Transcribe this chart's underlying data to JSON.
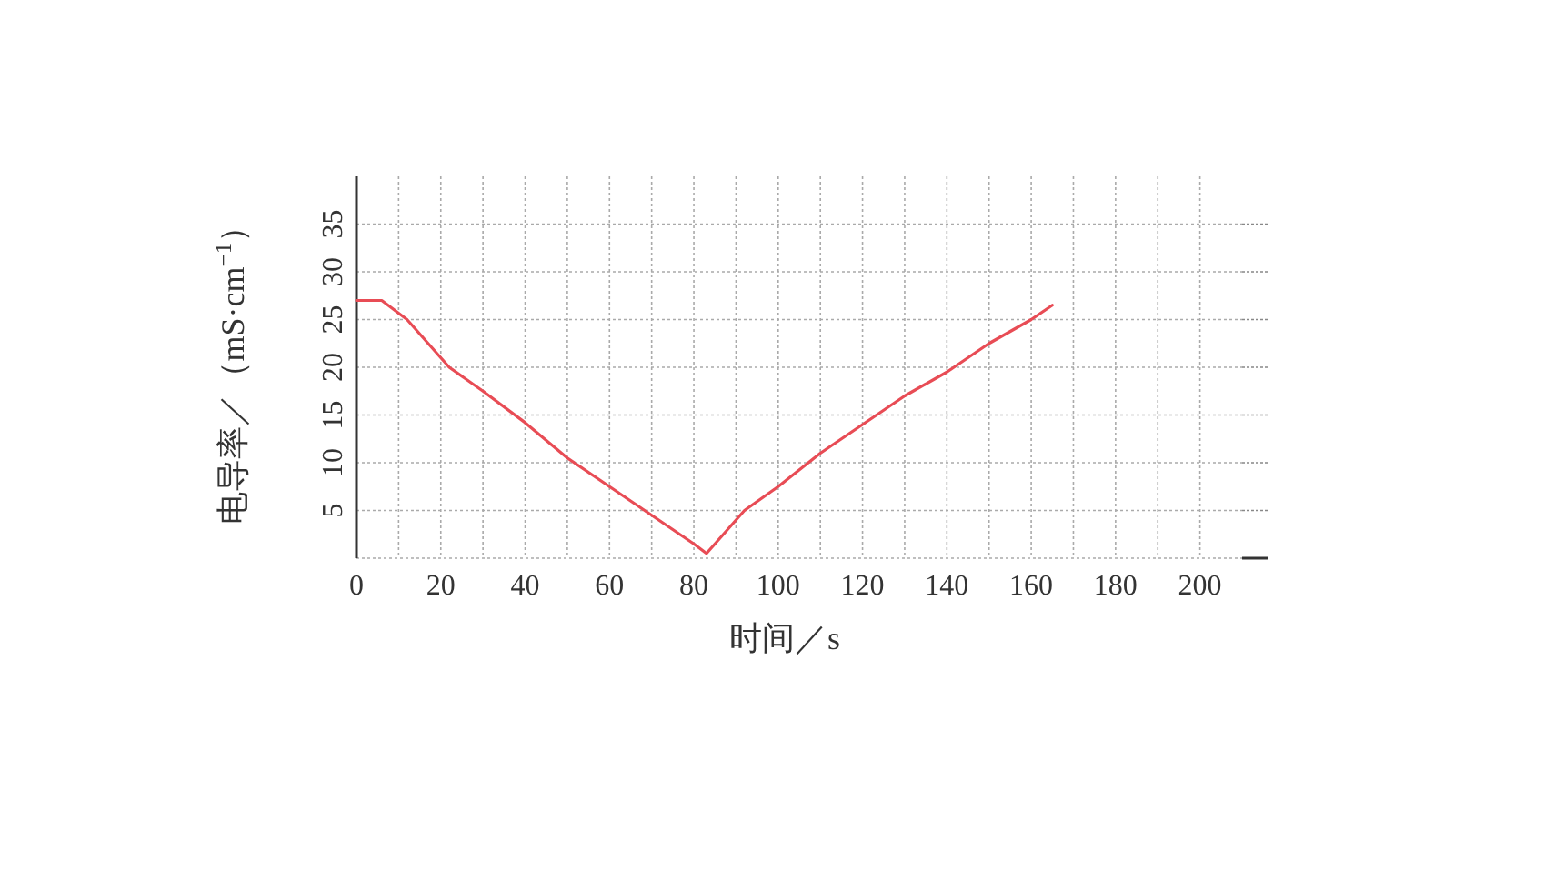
{
  "chart_data": {
    "type": "line",
    "xlabel": "时间／s",
    "ylabel": "电导率／（mS·cm$^{−1}$）",
    "xlim": [
      0,
      210
    ],
    "ylim": [
      0,
      40
    ],
    "xticks": [
      0,
      {
        "value": 10,
        "label": null
      },
      20,
      {
        "value": 30,
        "label": null
      },
      40,
      {
        "value": 50,
        "label": null
      },
      60,
      {
        "value": 70,
        "label": null
      },
      80,
      {
        "value": 90,
        "label": null
      },
      100,
      {
        "value": 110,
        "label": null
      },
      120,
      {
        "value": 130,
        "label": null
      },
      140,
      {
        "value": 150,
        "label": null
      },
      160,
      {
        "value": 170,
        "label": null
      },
      180,
      {
        "value": 190,
        "label": null
      },
      200
    ],
    "yticks": [
      {
        "value": 0,
        "label": null
      },
      5,
      10,
      15,
      20,
      25,
      30,
      35
    ],
    "grid": true,
    "marker": "none",
    "line_style": "solid",
    "x": [
      0,
      6,
      12,
      18,
      22,
      30,
      40,
      50,
      60,
      70,
      80,
      83,
      86,
      92,
      100,
      110,
      120,
      130,
      140,
      150,
      160,
      165
    ],
    "series": [
      {
        "color": "#e84c55",
        "values": [
          27,
          27,
          25,
          22,
          20,
          17.5,
          14.2,
          10.5,
          7.5,
          4.5,
          1.5,
          0.5,
          2,
          5,
          7.5,
          11,
          14,
          17,
          19.5,
          22.5,
          25,
          26.5
        ]
      }
    ]
  }
}
